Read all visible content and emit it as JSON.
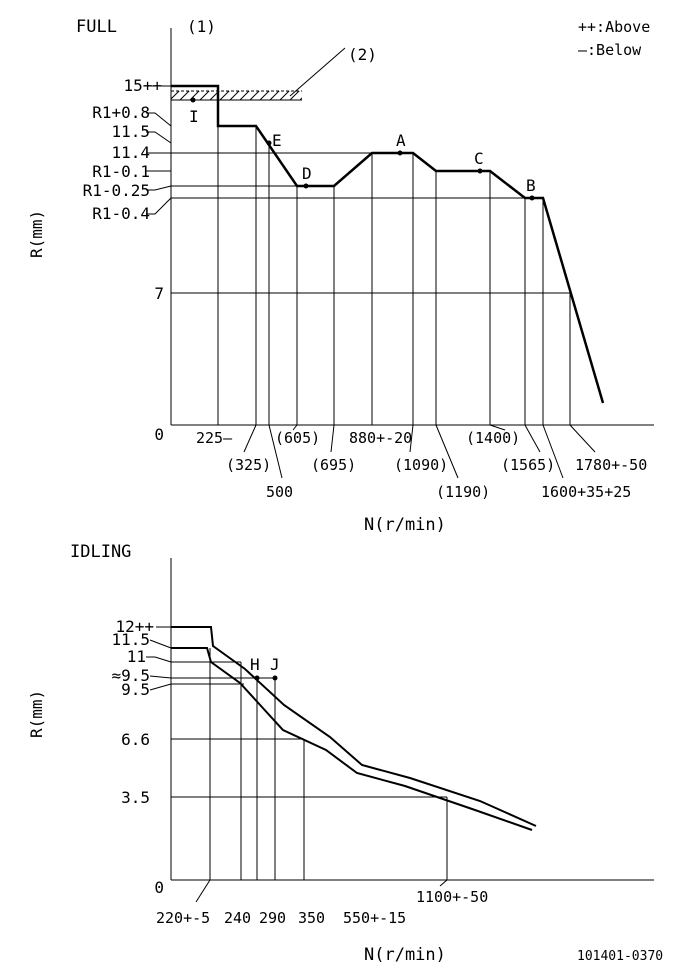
{
  "legend": {
    "above": "++:Above",
    "below": "—:Below"
  },
  "full": {
    "title": "FULL",
    "marker1": "(1)",
    "marker2": "(2)",
    "ylabel": "R(mm)",
    "xlabel": "N(r/min)",
    "y_ticks": [
      "15++",
      "R1+0.8",
      "11.5",
      "11.4",
      "R1-0.1",
      "R1-0.25",
      "R1-0.4",
      "7",
      "0"
    ],
    "x_ticks": [
      "225—",
      "(325)",
      "500",
      "(605)",
      "(695)",
      "880+-20",
      "(1090)",
      "(1190)",
      "(1400)",
      "(1565)",
      "1600+35+25",
      "1780+-50"
    ],
    "points": [
      "I",
      "E",
      "D",
      "A",
      "C",
      "B"
    ]
  },
  "idling": {
    "title": "IDLING",
    "ylabel": "R(mm)",
    "xlabel": "N(r/min)",
    "y_ticks": [
      "12++",
      "11.5",
      "11",
      "≈9.5",
      "9.5",
      "6.6",
      "3.5",
      "0"
    ],
    "x_ticks": [
      "220+-5",
      "240",
      "290",
      "350",
      "550+-15",
      "1100+-50"
    ],
    "points": [
      "H",
      "J"
    ]
  },
  "drawing_number": "101401-0370"
}
